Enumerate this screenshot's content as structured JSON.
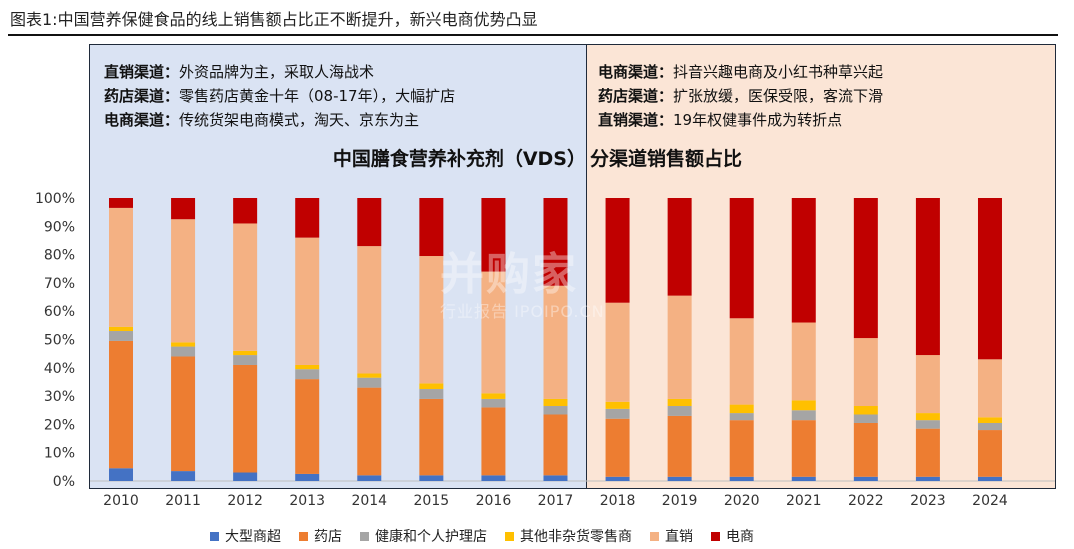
{
  "figure_title": "图表1:中国营养保健食品的线上销售额占比正不断提升，新兴电商优势凸显",
  "left_notes": [
    {
      "label": "直销渠道：",
      "text": "外资品牌为主，采取人海战术"
    },
    {
      "label": "药店渠道：",
      "text": "零售药店黄金十年（08-17年），大幅扩店"
    },
    {
      "label": "电商渠道：",
      "text": "传统货架电商模式，淘天、京东为主"
    }
  ],
  "right_notes": [
    {
      "label": "电商渠道：",
      "text": "抖音兴趣电商及小红书种草兴起"
    },
    {
      "label": "药店渠道：",
      "text": "扩张放缓，医保受限，客流下滑"
    },
    {
      "label": "直销渠道：",
      "text": "19年权健事件成为转折点"
    }
  ],
  "title_left": "中国膳食营养补充剂（VDS）",
  "title_right": "分渠道销售额占比",
  "watermark": {
    "line1": "并购家",
    "line2": "行业报告 IPOIPO.CN"
  },
  "colors": {
    "left_bg": "#dae3f3",
    "right_bg": "#fbe5d6"
  },
  "chart_data": {
    "type": "bar",
    "stacked": true,
    "categories": [
      "2010",
      "2011",
      "2012",
      "2013",
      "2014",
      "2015",
      "2016",
      "2017",
      "2018",
      "2019",
      "2020",
      "2021",
      "2022",
      "2023",
      "2024"
    ],
    "ylim": [
      0,
      100
    ],
    "yticks": [
      "0%",
      "10%",
      "20%",
      "30%",
      "40%",
      "50%",
      "60%",
      "70%",
      "80%",
      "90%",
      "100%"
    ],
    "grid": false,
    "legend_position": "bottom",
    "series": [
      {
        "name": "大型商超",
        "color": "#4472c4",
        "values": [
          4.5,
          3.5,
          3,
          2.5,
          2,
          2,
          2,
          2,
          1.5,
          1.5,
          1.5,
          1.5,
          1.5,
          1.5,
          1.5
        ]
      },
      {
        "name": "药店",
        "color": "#ed7d31",
        "values": [
          45,
          40.5,
          38,
          33.5,
          31,
          27,
          24,
          21.5,
          20.5,
          21.5,
          20,
          20,
          19,
          17,
          16.5
        ]
      },
      {
        "name": "健康和个人护理店",
        "color": "#a5a5a5",
        "values": [
          3.5,
          3.5,
          3.5,
          3.5,
          3.5,
          3.5,
          3,
          3,
          3.5,
          3.5,
          2.5,
          3.5,
          3,
          3,
          2.5
        ]
      },
      {
        "name": "其他非杂货零售商",
        "color": "#ffc000",
        "values": [
          1.5,
          1.5,
          1.5,
          1.5,
          1.5,
          2,
          2,
          2.5,
          2.5,
          2.5,
          3,
          3.5,
          3,
          2.5,
          2
        ]
      },
      {
        "name": "直销",
        "color": "#f4b183",
        "values": [
          42,
          43.5,
          45,
          45,
          45,
          45,
          43,
          40,
          35,
          36.5,
          30.5,
          27.5,
          24,
          20.5,
          20.5
        ]
      },
      {
        "name": "电商",
        "color": "#c00000",
        "values": [
          3.5,
          7.5,
          9,
          14,
          17,
          20.5,
          26,
          31,
          37,
          34.5,
          42.5,
          44,
          49.5,
          55.5,
          57
        ]
      }
    ]
  }
}
